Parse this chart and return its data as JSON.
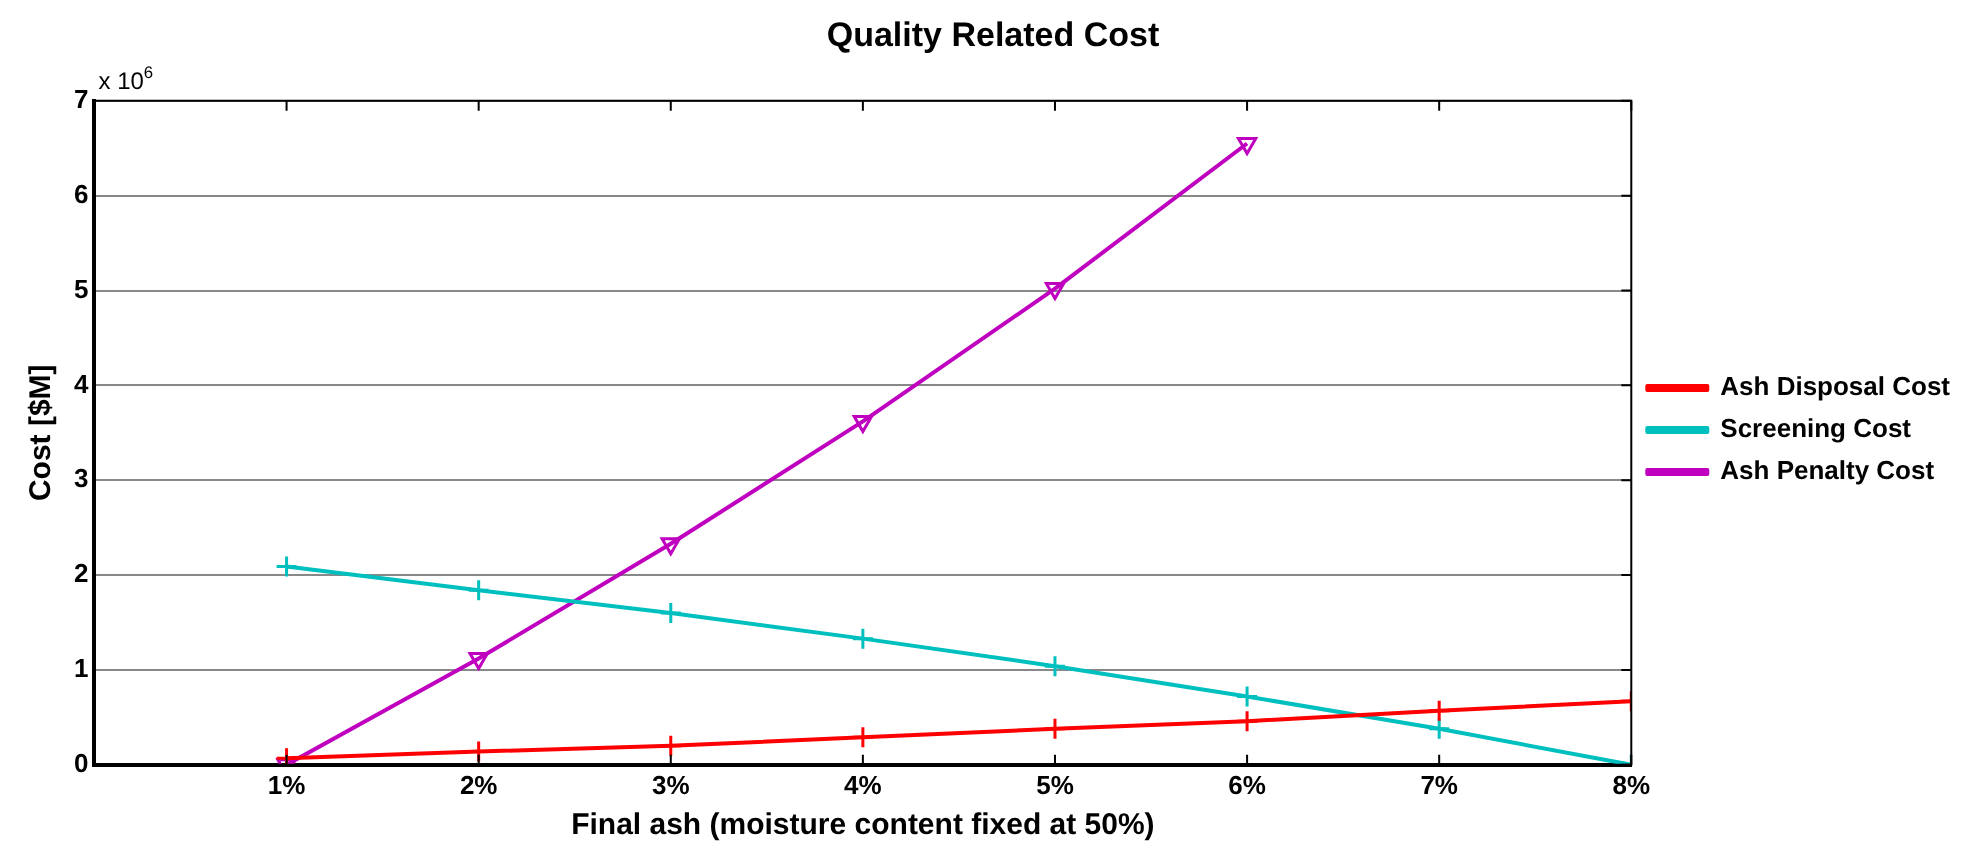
{
  "chart_data": {
    "type": "line",
    "title": "Quality Related Cost",
    "xlabel": "Final ash (moisture content fixed at 50%)",
    "ylabel": "Cost [$M]",
    "annotations": [
      "x 10$^{6}$"
    ],
    "x": [
      1,
      2,
      3,
      4,
      5,
      6,
      7,
      8
    ],
    "xlim": [
      0,
      8
    ],
    "xticks": [
      {
        "value": 1,
        "label": "1%"
      },
      {
        "value": 2,
        "label": "2%"
      },
      {
        "value": 3,
        "label": "3%"
      },
      {
        "value": 4,
        "label": "4%"
      },
      {
        "value": 5,
        "label": "5%"
      },
      {
        "value": 6,
        "label": "6%"
      },
      {
        "value": 7,
        "label": "7%"
      },
      {
        "value": 8,
        "label": "8%"
      }
    ],
    "ylim": [
      0,
      7
    ],
    "yticks": [
      0,
      1,
      2,
      3,
      4,
      5,
      6,
      7
    ],
    "grid": "y",
    "legend": "right",
    "series": [
      {
        "name": "Ash Disposal Cost",
        "color": "#ff0000",
        "marker": "cross",
        "values": [
          0.07,
          0.14,
          0.2,
          0.29,
          0.38,
          0.46,
          0.57,
          0.67
        ]
      },
      {
        "name": "Screening Cost",
        "color": "#00bfbf",
        "marker": "cross",
        "values": [
          2.09,
          1.84,
          1.6,
          1.33,
          1.04,
          0.72,
          0.38,
          0.0
        ]
      },
      {
        "name": "Ash Penalty Cost",
        "color": "#bf00bf",
        "marker": "triangle",
        "values": [
          0.0,
          1.12,
          2.33,
          3.62,
          5.02,
          6.55,
          null,
          null
        ]
      }
    ]
  }
}
